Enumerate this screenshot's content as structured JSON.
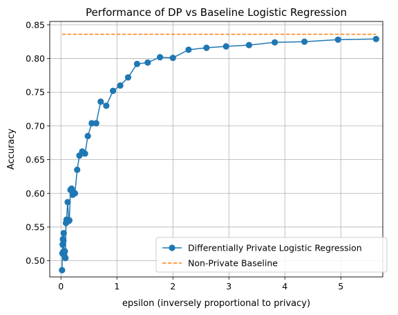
{
  "chart_data": {
    "type": "line",
    "title": "Performance of DP vs Baseline Logistic Regression",
    "xlabel": "epsilon (inversely proportional to privacy)",
    "ylabel": "Accuracy",
    "xlim": [
      -0.2,
      5.75
    ],
    "ylim": [
      0.476,
      0.855
    ],
    "x_ticks": [
      0,
      1,
      2,
      3,
      4,
      5
    ],
    "y_ticks": [
      0.5,
      0.55,
      0.6,
      0.65,
      0.7,
      0.75,
      0.8,
      0.85
    ],
    "x_tick_labels": [
      "0",
      "1",
      "2",
      "3",
      "4",
      "5"
    ],
    "y_tick_labels": [
      "0.50",
      "0.55",
      "0.60",
      "0.65",
      "0.70",
      "0.75",
      "0.80",
      "0.85"
    ],
    "grid": true,
    "legend_position": "lower-right",
    "series": [
      {
        "name": "Differentially Private Logistic Regression",
        "color": "#1f77b4",
        "style": "solid",
        "marker": "circle",
        "x": [
          0.02,
          0.025,
          0.03,
          0.035,
          0.04,
          0.045,
          0.05,
          0.06,
          0.07,
          0.08,
          0.09,
          0.1,
          0.12,
          0.14,
          0.15,
          0.17,
          0.19,
          0.21,
          0.23,
          0.25,
          0.29,
          0.33,
          0.38,
          0.43,
          0.48,
          0.55,
          0.63,
          0.71,
          0.81,
          0.93,
          1.06,
          1.2,
          1.36,
          1.55,
          1.77,
          2.0,
          2.28,
          2.6,
          2.95,
          3.36,
          3.82,
          4.35,
          4.95,
          5.63
        ],
        "y": [
          0.486,
          0.511,
          0.524,
          0.532,
          0.513,
          0.53,
          0.541,
          0.508,
          0.514,
          0.504,
          0.556,
          0.561,
          0.587,
          0.559,
          0.56,
          0.605,
          0.607,
          0.598,
          0.601,
          0.6,
          0.635,
          0.656,
          0.662,
          0.659,
          0.685,
          0.704,
          0.704,
          0.736,
          0.73,
          0.752,
          0.76,
          0.772,
          0.792,
          0.794,
          0.802,
          0.801,
          0.813,
          0.816,
          0.818,
          0.82,
          0.824,
          0.825,
          0.828,
          0.829
        ]
      },
      {
        "name": "Non-Private Baseline",
        "color": "#ff7f0e",
        "style": "dashed",
        "marker": "none",
        "x": [
          0.02,
          5.63
        ],
        "y": [
          0.836,
          0.836
        ]
      }
    ]
  }
}
